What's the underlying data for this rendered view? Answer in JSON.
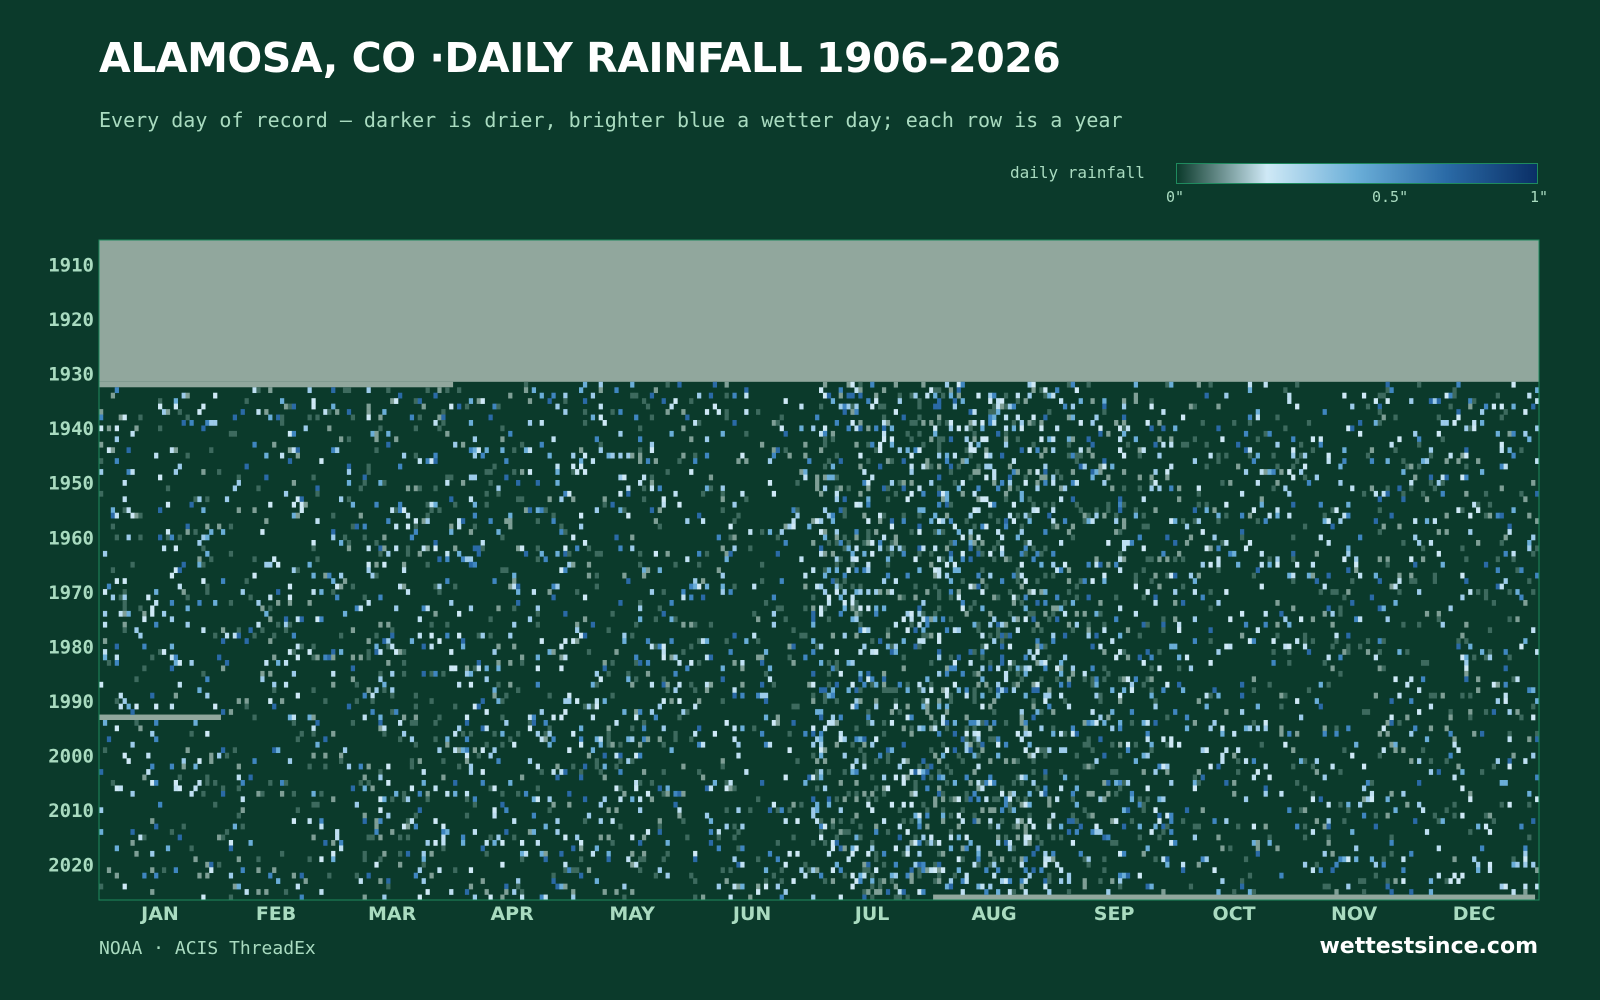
{
  "header": {
    "title": "ALAMOSA, CO ·DAILY RAINFALL 1906–2026",
    "subtitle": "Every day of record — darker is drier, brighter blue a wetter day; each row is a year"
  },
  "legend": {
    "label": "daily rainfall",
    "ticks": [
      "0\"",
      "0.5\"",
      "1\""
    ],
    "gradient_colors": [
      "#0b3a2b",
      "#cfe9f6",
      "#6aaed8",
      "#2a6aa6",
      "#0a2f66"
    ]
  },
  "colors": {
    "background": "#0b3a2b",
    "missing": "#91a79d",
    "border": "#1f8a5e",
    "axis_text": "#a9dbc0",
    "dry": "#0b3a2b"
  },
  "footer": {
    "source": "NOAA · ACIS ThreadEx",
    "brand": "wettestsince.com"
  },
  "chart_data": {
    "type": "heatmap",
    "title": "ALAMOSA, CO ·DAILY RAINFALL 1906–2026",
    "x": "day of year",
    "y": "year",
    "year_range": [
      1906,
      2026
    ],
    "month_labels": [
      "JAN",
      "FEB",
      "MAR",
      "APR",
      "MAY",
      "JUN",
      "JUL",
      "AUG",
      "SEP",
      "OCT",
      "NOV",
      "DEC"
    ],
    "year_ticks": [
      1910,
      1920,
      1930,
      1940,
      1950,
      1960,
      1970,
      1980,
      1990,
      2000,
      2010,
      2020
    ],
    "value_range": [
      0,
      1
    ],
    "units": "inches",
    "missing_periods": [
      {
        "years": [
          1906,
          1931
        ],
        "note": "no data"
      },
      {
        "years": [
          1932,
          1932
        ],
        "months": [
          "JAN",
          "FEB",
          "MAR"
        ]
      },
      {
        "years": [
          1993,
          1993
        ],
        "months": [
          "JAN"
        ]
      },
      {
        "years": [
          2026,
          2026
        ],
        "months": [
          "AUG",
          "SEP",
          "OCT",
          "NOV",
          "DEC"
        ]
      }
    ],
    "wet_day_probability_by_month": [
      0.09,
      0.09,
      0.12,
      0.12,
      0.12,
      0.09,
      0.23,
      0.25,
      0.16,
      0.11,
      0.1,
      0.1
    ]
  }
}
